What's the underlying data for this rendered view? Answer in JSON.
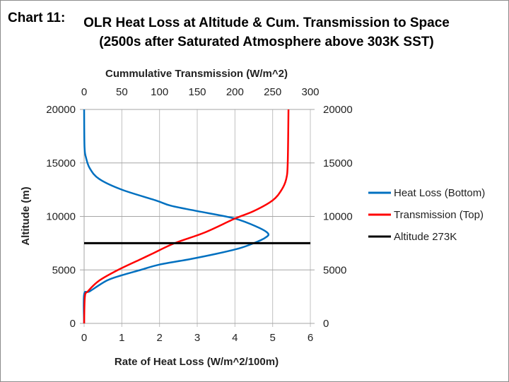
{
  "chart_data": {
    "type": "line",
    "prefix": "Chart 11:",
    "title_line1": "OLR Heat Loss at Altitude & Cum. Transmission to Space",
    "title_line2": "(2500s after Saturated Atmosphere above 303K SST)",
    "xlabel": "Rate of Heat Loss (W/m^2/100m)",
    "x2label": "Cummulative Transmission  (W/m^2)",
    "ylabel": "Altitude (m)",
    "xlim": [
      0,
      6
    ],
    "x2lim": [
      0,
      300
    ],
    "ylim": [
      0,
      20000
    ],
    "xticks": [
      "0",
      "1",
      "2",
      "3",
      "4",
      "5",
      "6"
    ],
    "x2ticks": [
      "0",
      "50",
      "100",
      "150",
      "200",
      "250",
      "300"
    ],
    "yticks": [
      "0",
      "5000",
      "10000",
      "15000",
      "20000"
    ],
    "grid": true,
    "legend_position": "right",
    "series": [
      {
        "name": "Heat Loss (Bottom)",
        "color": "#0070C0",
        "axis": "bottom",
        "x": [
          0,
          0,
          0.15,
          0.6,
          1.0,
          1.5,
          2.0,
          2.8,
          3.5,
          4.1,
          4.5,
          4.8,
          4.88,
          4.6,
          4.0,
          3.0,
          2.3,
          1.9,
          1.0,
          0.4,
          0.15,
          0.05,
          0.01,
          0
        ],
        "y": [
          0,
          2700,
          3000,
          4000,
          4500,
          5000,
          5500,
          6000,
          6500,
          7000,
          7500,
          8000,
          8400,
          9000,
          9800,
          10500,
          11000,
          11500,
          12500,
          13500,
          14500,
          15500,
          16500,
          20000
        ]
      },
      {
        "name": "Transmission (Top)",
        "color": "#FF0000",
        "axis": "top",
        "x": [
          0,
          1,
          5,
          20,
          45,
          75,
          90,
          120,
          160,
          200,
          225,
          250,
          262,
          268,
          270,
          271
        ],
        "y": [
          0,
          2500,
          3000,
          4000,
          5000,
          6000,
          6500,
          7500,
          8500,
          9800,
          10500,
          11500,
          12500,
          13500,
          15000,
          20000
        ]
      },
      {
        "name": "Altitude 273K",
        "color": "#000000",
        "axis": "bottom",
        "x": [
          0,
          6
        ],
        "y": [
          7500,
          7500
        ]
      }
    ]
  }
}
